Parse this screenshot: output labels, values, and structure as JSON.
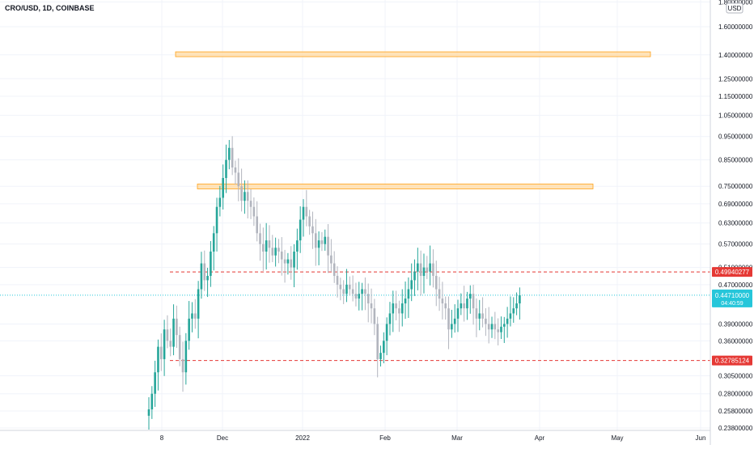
{
  "header": {
    "symbol": "CRO/USD, 1D, COINBASE"
  },
  "currency_badge": "USD",
  "colors": {
    "up": "#26a69a",
    "down": "#b2b5be",
    "level_line": "#e53935",
    "level_badge": "#e53935",
    "price_line": "#26c6da",
    "price_badge": "#26c6da",
    "zone_fill": "#ffe0b2",
    "zone_stroke": "#ff9800"
  },
  "chart_data": {
    "type": "candlestick",
    "y_scale": "log",
    "y_ticks": [
      "1.80000000",
      "1.60000000",
      "1.40000000",
      "1.25000000",
      "1.15000000",
      "1.05000000",
      "0.95000000",
      "0.85000000",
      "0.75000000",
      "0.69000000",
      "0.63000000",
      "0.57000000",
      "0.51000000",
      "0.47000000",
      "0.44710000",
      "0.39000000",
      "0.36000000",
      "0.30500000",
      "0.28000000",
      "0.25800000",
      "0.23800000"
    ],
    "x_ticks": [
      "8",
      "Dec",
      "2022",
      "Feb",
      "Mar",
      "Apr",
      "May",
      "Jun"
    ],
    "levels": [
      {
        "label": "0.49940277",
        "value": 0.49940277
      },
      {
        "label": "0.32785124",
        "value": 0.32785124
      }
    ],
    "last_price": {
      "label": "0.44710000",
      "sub": "04:40:59",
      "value": 0.4471
    },
    "zones": [
      {
        "low": 1.4,
        "high": 1.42
      },
      {
        "low": 0.745,
        "high": 0.758
      }
    ],
    "series": [
      {
        "name": "CRO/USD",
        "close": [
          0.26,
          0.28,
          0.31,
          0.35,
          0.33,
          0.38,
          0.36,
          0.35,
          0.4,
          0.37,
          0.33,
          0.31,
          0.36,
          0.4,
          0.41,
          0.4,
          0.46,
          0.52,
          0.48,
          0.49,
          0.55,
          0.6,
          0.68,
          0.71,
          0.78,
          0.85,
          0.9,
          0.82,
          0.8,
          0.75,
          0.7,
          0.73,
          0.7,
          0.68,
          0.65,
          0.6,
          0.57,
          0.55,
          0.58,
          0.56,
          0.54,
          0.56,
          0.55,
          0.53,
          0.52,
          0.53,
          0.51,
          0.55,
          0.58,
          0.64,
          0.68,
          0.65,
          0.62,
          0.6,
          0.56,
          0.58,
          0.57,
          0.59,
          0.54,
          0.52,
          0.49,
          0.47,
          0.46,
          0.45,
          0.47,
          0.46,
          0.45,
          0.44,
          0.45,
          0.46,
          0.45,
          0.43,
          0.42,
          0.39,
          0.33,
          0.34,
          0.36,
          0.39,
          0.41,
          0.43,
          0.42,
          0.41,
          0.43,
          0.44,
          0.46,
          0.48,
          0.5,
          0.52,
          0.49,
          0.51,
          0.5,
          0.52,
          0.49,
          0.46,
          0.44,
          0.43,
          0.42,
          0.38,
          0.39,
          0.4,
          0.42,
          0.43,
          0.42,
          0.44,
          0.45,
          0.42,
          0.4,
          0.41,
          0.4,
          0.39,
          0.38,
          0.39,
          0.38,
          0.375,
          0.385,
          0.39,
          0.4,
          0.41,
          0.42,
          0.43,
          0.447
        ]
      }
    ]
  }
}
